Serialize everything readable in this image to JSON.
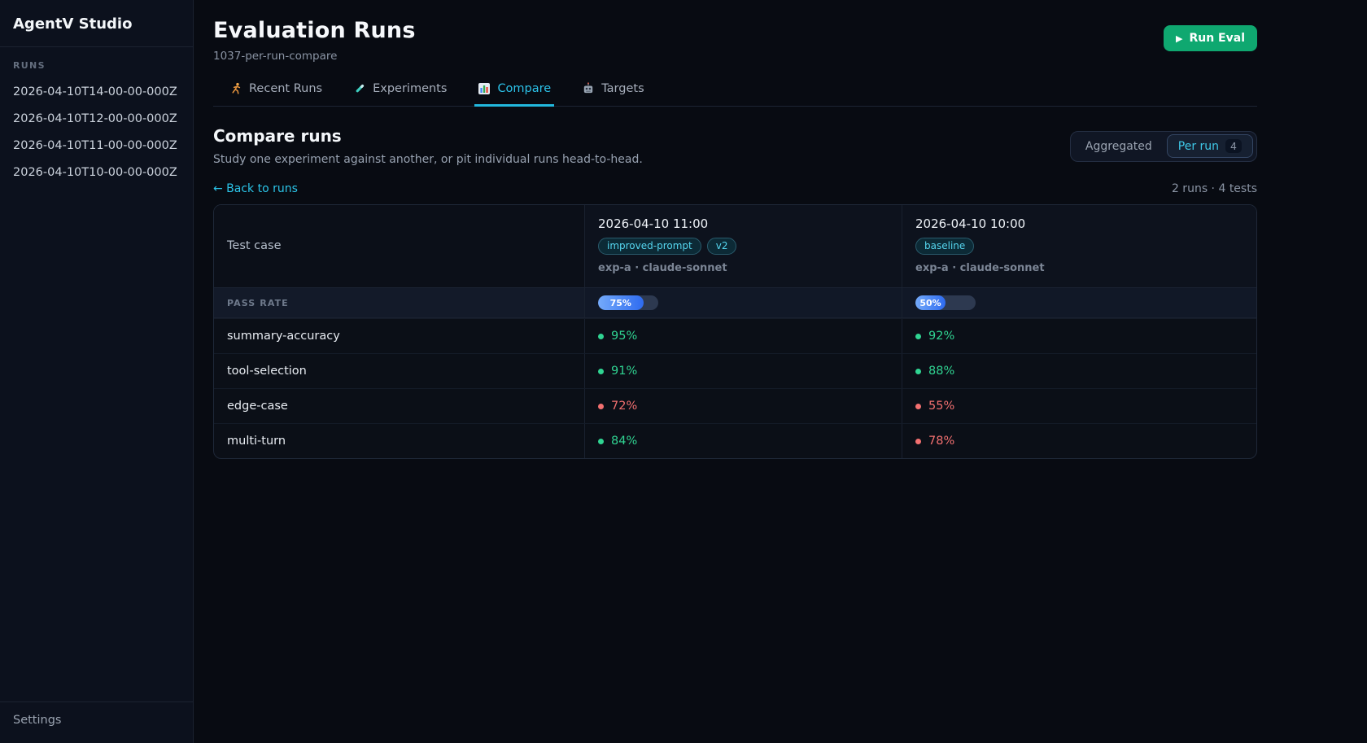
{
  "app": {
    "title": "AgentV Studio",
    "settings_label": "Settings"
  },
  "sidebar": {
    "section_label": "RUNS",
    "runs": [
      "2026-04-10T14-00-00-000Z",
      "2026-04-10T12-00-00-000Z",
      "2026-04-10T11-00-00-000Z",
      "2026-04-10T10-00-00-000Z"
    ]
  },
  "header": {
    "title": "Evaluation Runs",
    "subtitle": "1037-per-run-compare",
    "play_icon": "▶",
    "run_eval_label": "Run Eval"
  },
  "tabs": [
    {
      "label": "Recent Runs",
      "icon": "runner-icon",
      "active": false
    },
    {
      "label": "Experiments",
      "icon": "test-tube-icon",
      "active": false
    },
    {
      "label": "Compare",
      "icon": "bar-chart-icon",
      "active": true
    },
    {
      "label": "Targets",
      "icon": "robot-icon",
      "active": false
    }
  ],
  "compare": {
    "heading": "Compare runs",
    "subheading": "Study one experiment against another, or pit individual runs head-to-head.",
    "toggle": {
      "aggregated": "Aggregated",
      "per_run": "Per run",
      "per_run_count": "4"
    },
    "back_link": "← Back to runs",
    "summary": "2 runs · 4 tests"
  },
  "table": {
    "test_case_header": "Test case",
    "pass_rate_label": "PASS RATE",
    "runs": [
      {
        "timestamp": "2026-04-10 11:00",
        "badges": [
          "improved-prompt",
          "v2"
        ],
        "meta": "exp-a · claude-sonnet",
        "pass_rate": 75,
        "pass_rate_text": "75%"
      },
      {
        "timestamp": "2026-04-10 10:00",
        "badges": [
          "baseline"
        ],
        "meta": "exp-a · claude-sonnet",
        "pass_rate": 50,
        "pass_rate_text": "50%"
      }
    ],
    "rows": [
      {
        "test": "summary-accuracy",
        "values": [
          {
            "text": "95%",
            "status": "pass"
          },
          {
            "text": "92%",
            "status": "pass"
          }
        ]
      },
      {
        "test": "tool-selection",
        "values": [
          {
            "text": "91%",
            "status": "pass"
          },
          {
            "text": "88%",
            "status": "pass"
          }
        ]
      },
      {
        "test": "edge-case",
        "values": [
          {
            "text": "72%",
            "status": "fail"
          },
          {
            "text": "55%",
            "status": "fail"
          }
        ]
      },
      {
        "test": "multi-turn",
        "values": [
          {
            "text": "84%",
            "status": "pass"
          },
          {
            "text": "78%",
            "status": "fail"
          }
        ]
      }
    ]
  },
  "colors": {
    "accent_cyan": "#2cc3ea",
    "button_green": "#0fa870",
    "bar_blue": "#2e6bf0",
    "pass_green": "#30d492",
    "fail_red": "#f37070"
  }
}
